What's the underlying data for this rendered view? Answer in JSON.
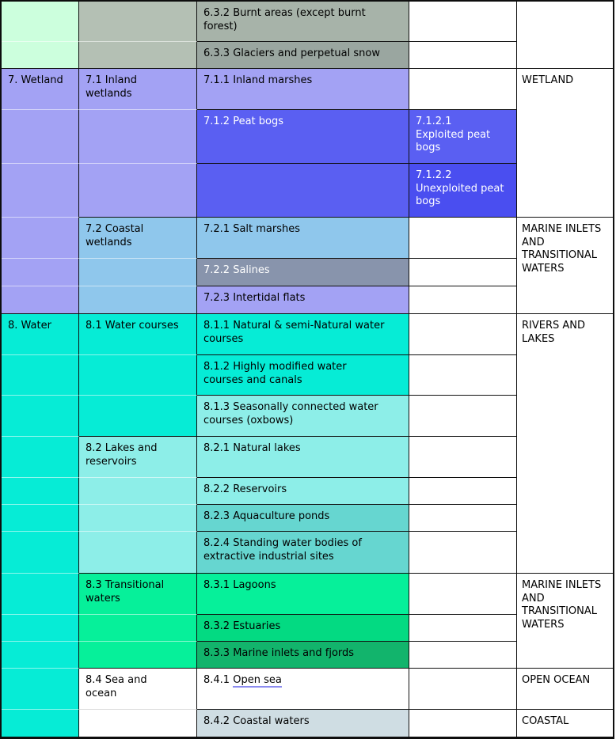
{
  "palette": {
    "mint": "#ccffdd",
    "graygreen_l": "#b4c0b4",
    "graygreen_m": "#a7b3a9",
    "graygreen_d": "#9aa6a0",
    "periwinkle": "#a3a2f4",
    "peat_blue": "#5a5ff2",
    "peat_blue_dark": "#4a4ef0",
    "sky_blue": "#8fc7ec",
    "slate_blue": "#8894ac",
    "turquoise": "#06ecd6",
    "aqua_light": "#8deee8",
    "teal": "#66d6d0",
    "spring_green": "#06f09a",
    "sea_green": "#03da82",
    "deep_green": "#12b46c",
    "pale_steel": "#cfdde3",
    "white": "#ffffff",
    "text_light": "#ffffff",
    "link_underline": "#8c8cf0"
  },
  "col1": {
    "g7": "7. Wetland",
    "g8": "8. Water"
  },
  "col2": {
    "g71": "7.1 Inland\nwetlands",
    "g72": "7.2 Coastal\nwetlands",
    "g81": "8.1 Water courses",
    "g82": "8.2 Lakes and\nreservoirs",
    "g83": "8.3 Transitional\nwaters",
    "g84": "8.4 Sea and\nocean"
  },
  "col3": {
    "r1": "6.3.2 Burnt areas (except burnt\nforest)",
    "r2": "6.3.3 Glaciers and perpetual snow",
    "r3": "7.1.1 Inland marshes",
    "r4": "7.1.2 Peat bogs",
    "r6": "7.2.1 Salt marshes",
    "r7": "7.2.2 Salines",
    "r8": "7.2.3 Intertidal flats",
    "r9": "8.1.1 Natural & semi-Natural water\ncourses",
    "r10": "8.1.2 Highly modified water\ncourses and canals",
    "r11": "8.1.3 Seasonally connected water\ncourses (oxbows)",
    "r12": "8.2.1 Natural lakes",
    "r13": "8.2.2 Reservoirs",
    "r14": "8.2.3 Aquaculture ponds",
    "r15": "8.2.4 Standing water bodies of\nextractive industrial sites",
    "r16": "8.3.1 Lagoons",
    "r17": "8.3.2 Estuaries",
    "r18": "8.3.3 Marine inlets and fjords",
    "r19_prefix": "8.4.1 ",
    "r19_link": "Open sea",
    "r20": "8.4.2 Coastal waters"
  },
  "col4": {
    "r4": "7.1.2.1\nExploited peat\nbogs",
    "r5": "7.1.2.2\nUnexploited peat\nbogs"
  },
  "col5": {
    "wetland": "WETLAND",
    "marine_inlets": "MARINE INLETS\nAND\nTRANSITIONAL\nWATERS",
    "rivers_lakes": "RIVERS AND\nLAKES",
    "marine_inlets_2": "MARINE INLETS\nAND\nTRANSITIONAL\nWATERS",
    "open_ocean": "OPEN OCEAN",
    "coastal": "COASTAL"
  }
}
